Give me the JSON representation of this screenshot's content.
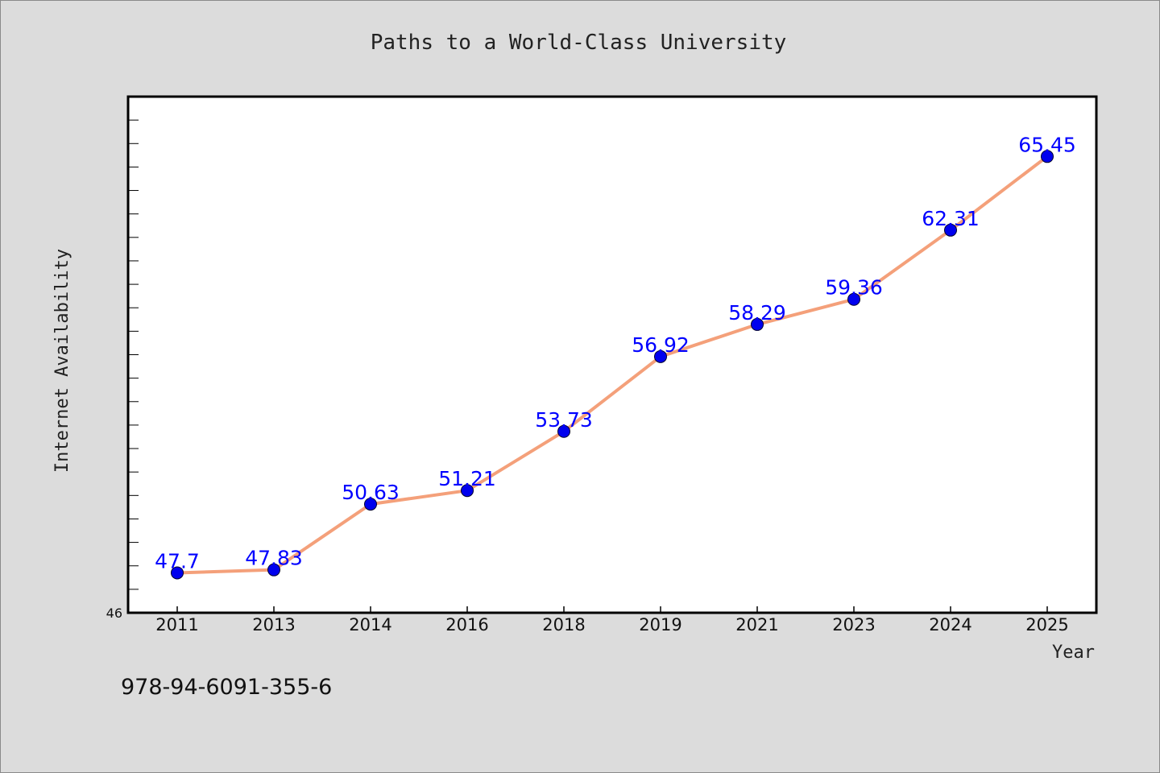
{
  "chart_data": {
    "type": "line",
    "title": "Paths to a World-Class University",
    "xlabel": "Year",
    "ylabel": "Internet Availability",
    "categories": [
      "2011",
      "2013",
      "2014",
      "2016",
      "2018",
      "2019",
      "2021",
      "2023",
      "2024",
      "2025"
    ],
    "series": [
      {
        "values": [
          47.7,
          47.83,
          50.63,
          51.21,
          53.73,
          56.92,
          58.29,
          59.36,
          62.31,
          65.45
        ],
        "line_color": "#f4a07a",
        "marker_color": "#0000ee",
        "label_color": "#0000ff"
      }
    ],
    "data_labels": [
      "47.7",
      "47.83",
      "50.63",
      "51.21",
      "53.73",
      "56.92",
      "58.29",
      "59.36",
      "62.31",
      "65.45"
    ],
    "ylim": [
      46,
      68
    ],
    "y_tick_labels": [
      "46"
    ],
    "grid": false,
    "legend": "none"
  },
  "footer": {
    "isbn": "978-94-6091-355-6"
  },
  "colors": {
    "background": "#dcdcdc",
    "plot_background": "#ffffff",
    "axis": "#000000"
  }
}
